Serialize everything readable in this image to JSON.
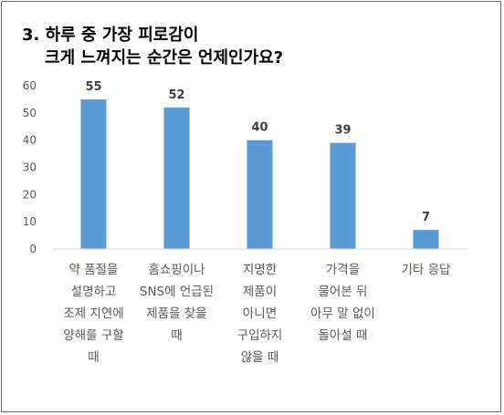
{
  "chart_data": {
    "type": "bar",
    "title_lines": [
      "3. 하루 중 가장 피로감이",
      "    크게 느껴지는 순간은 언제인가요?"
    ],
    "categories": [
      "약 품절을 설명하고 조제 지연에 양해를 구할 때",
      "홈쇼핑이나 SNS에 언급된 제품을 찾을 때",
      "지명한 제품이 아니면 구입하지 않을 때",
      "가격을 물어본 뒤 아무 말 없이 돌아설 때",
      "기타 응답"
    ],
    "category_lines": [
      [
        "약 품절을",
        "설명하고",
        "조제 지연에",
        "양해를 구할",
        "때"
      ],
      [
        "홈쇼핑이나",
        "SNS에 언급된",
        "제품을 찾을",
        "때"
      ],
      [
        "지명한",
        "제품이",
        "아니면",
        "구입하지",
        "않을 때"
      ],
      [
        "가격을",
        "물어본 뒤",
        "아무 말 없이",
        "돌아설 때"
      ],
      [
        "기타 응답"
      ]
    ],
    "values": [
      55,
      52,
      40,
      39,
      7
    ],
    "yticks": [
      0,
      10,
      20,
      30,
      40,
      50,
      60
    ],
    "ylim": [
      0,
      60
    ],
    "grid": false,
    "bar_color": "#5b9bd5",
    "axis_color": "#d9d9d9"
  }
}
